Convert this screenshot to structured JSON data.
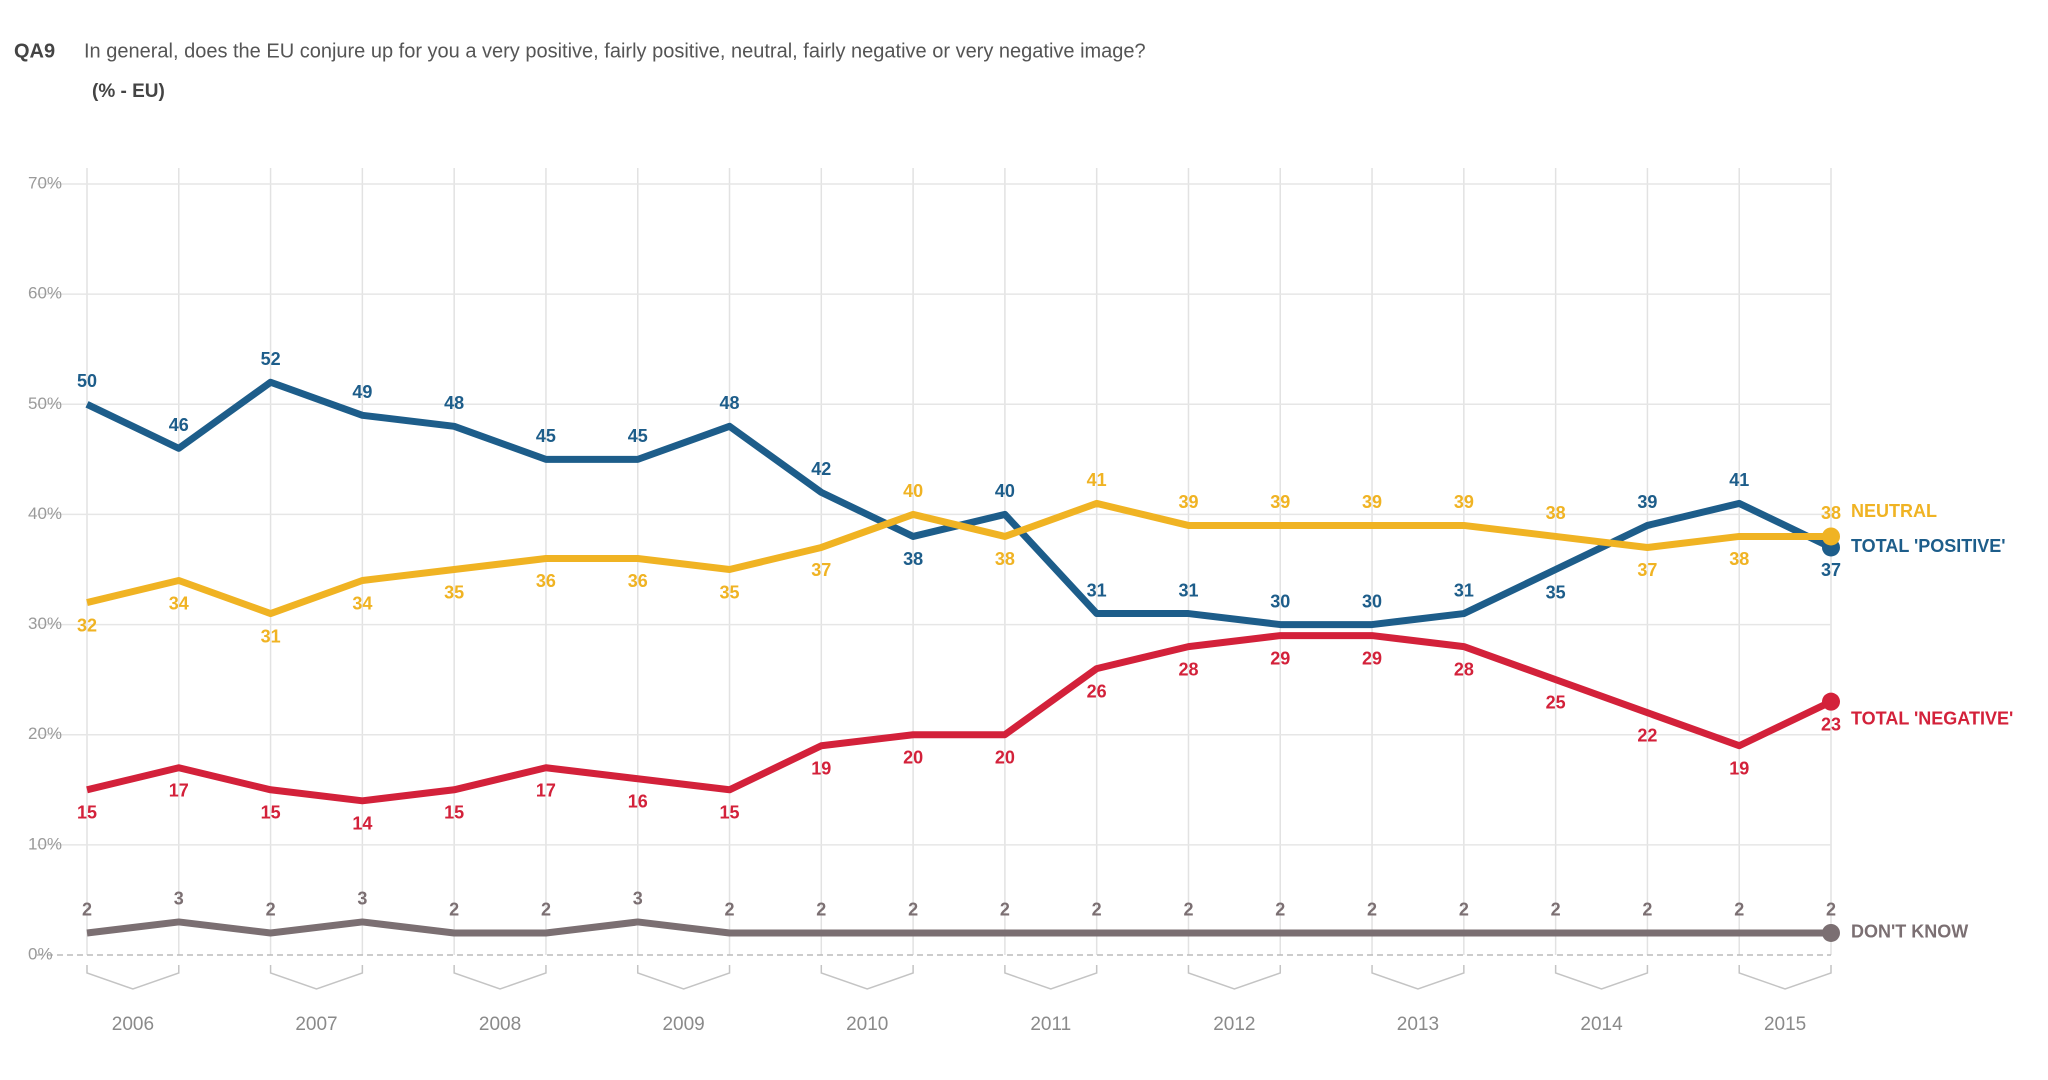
{
  "chart_data": {
    "type": "line",
    "code": "QA9",
    "title": "In general, does the EU conjure up for you a very positive, fairly positive, neutral, fairly negative or very negative image?",
    "subtitle": "(% - EU)",
    "year_labels": [
      "2006",
      "2007",
      "2008",
      "2009",
      "2010",
      "2011",
      "2012",
      "2013",
      "2014",
      "2015"
    ],
    "series": [
      {
        "name": "TOTAL 'POSITIVE'",
        "color": "#1d5d8a",
        "values": [
          50,
          46,
          52,
          49,
          48,
          45,
          45,
          48,
          42,
          38,
          40,
          31,
          31,
          30,
          30,
          31,
          35,
          39,
          41,
          37
        ]
      },
      {
        "name": "NEUTRAL",
        "color": "#f0b323",
        "values": [
          32,
          34,
          31,
          34,
          35,
          36,
          36,
          35,
          37,
          40,
          38,
          41,
          39,
          39,
          39,
          39,
          38,
          37,
          38,
          38
        ]
      },
      {
        "name": "TOTAL 'NEGATIVE'",
        "color": "#d3213a",
        "values": [
          15,
          17,
          15,
          14,
          15,
          17,
          16,
          15,
          19,
          20,
          20,
          26,
          28,
          29,
          29,
          28,
          25,
          22,
          19,
          23
        ]
      },
      {
        "name": "DON'T KNOW",
        "color": "#7b6f72",
        "values": [
          2,
          3,
          2,
          3,
          2,
          2,
          3,
          2,
          2,
          2,
          2,
          2,
          2,
          2,
          2,
          2,
          2,
          2,
          2,
          2
        ]
      }
    ],
    "ylim": [
      0,
      70
    ],
    "yticks": [
      {
        "value": 0,
        "label": "0%"
      },
      {
        "value": 10,
        "label": "10%"
      },
      {
        "value": 20,
        "label": "20%"
      },
      {
        "value": 30,
        "label": "30%"
      },
      {
        "value": 40,
        "label": "40%"
      },
      {
        "value": 50,
        "label": "50%"
      },
      {
        "value": 60,
        "label": "60%"
      },
      {
        "value": 70,
        "label": "70%"
      }
    ],
    "grid": true
  }
}
